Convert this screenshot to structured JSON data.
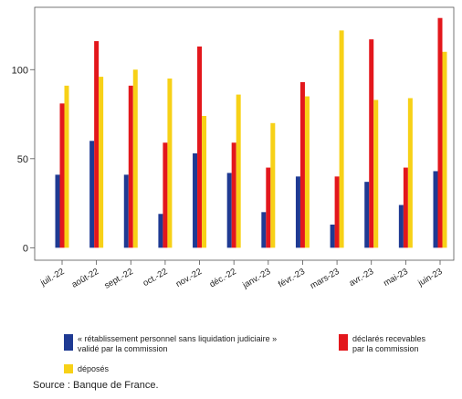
{
  "chart_data": {
    "type": "bar",
    "categories": [
      "juil.-22",
      "août-22",
      "sept.-22",
      "oct.-22",
      "nov.-22",
      "déc.-22",
      "janv.-23",
      "févr.-23",
      "mars-23",
      "avr.-23",
      "mai-23",
      "juin-23"
    ],
    "series": [
      {
        "name": "« rétablissement personnel sans liquidation judiciaire »\nvalidé par la commission",
        "color": "#1f3a93",
        "values": [
          41,
          60,
          41,
          19,
          53,
          42,
          20,
          40,
          13,
          37,
          24,
          43
        ]
      },
      {
        "name": "déclarés recevables\npar la commission",
        "color": "#e3171c",
        "values": [
          81,
          116,
          91,
          59,
          113,
          59,
          45,
          93,
          40,
          117,
          45,
          129
        ]
      },
      {
        "name": "déposés",
        "color": "#f7d117",
        "values": [
          91,
          96,
          100,
          95,
          74,
          86,
          70,
          85,
          122,
          83,
          84,
          110
        ]
      }
    ],
    "yticks": [
      0,
      50,
      100
    ],
    "ylim": [
      -7,
      135
    ],
    "grid": false,
    "legend_position": "bottom"
  },
  "source": "Source : Banque de France."
}
